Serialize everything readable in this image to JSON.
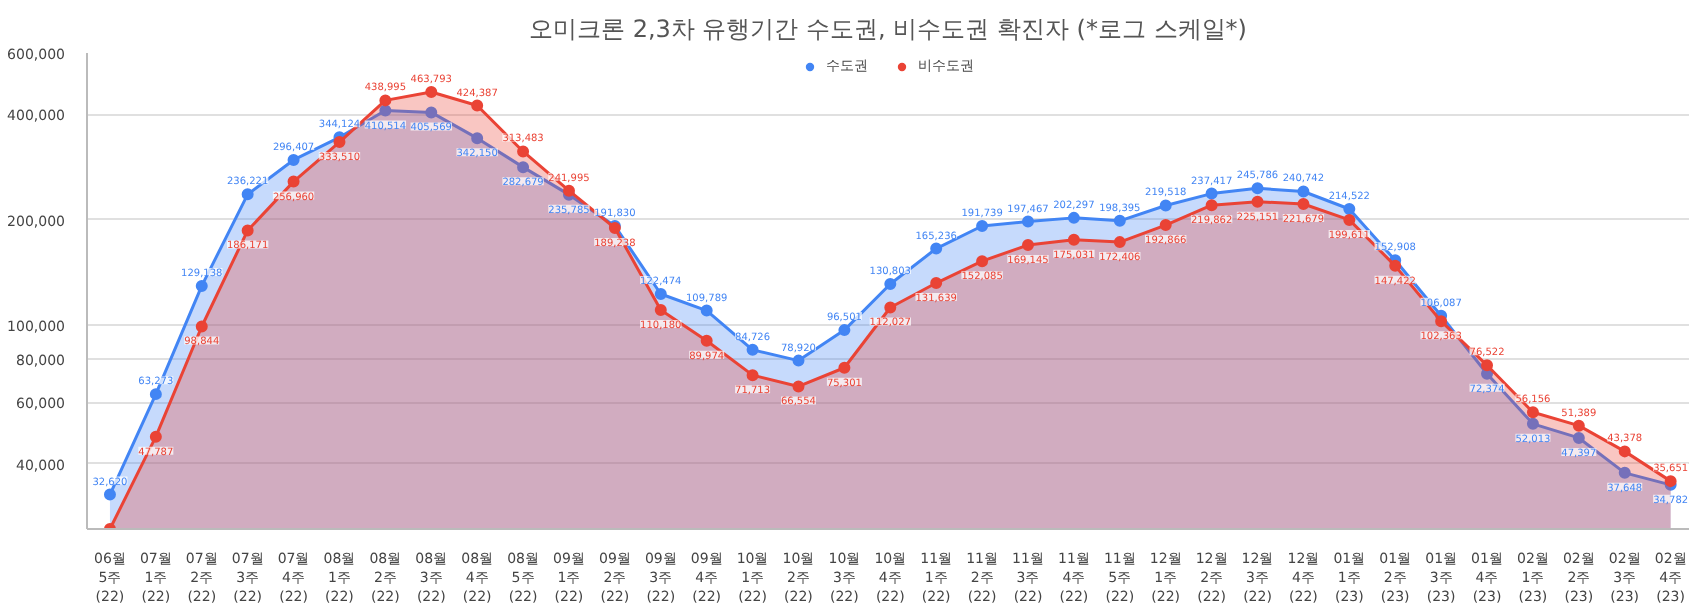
{
  "chart_data": {
    "type": "area",
    "title": "오미크론 2,3차 유행기간 수도권, 비수도권 확진자 (*로그 스케일*)",
    "categories": [
      "06월\n5주\n(22)",
      "07월\n1주\n(22)",
      "07월\n2주\n(22)",
      "07월\n3주\n(22)",
      "07월\n4주\n(22)",
      "08월\n1주\n(22)",
      "08월\n2주\n(22)",
      "08월\n3주\n(22)",
      "08월\n4주\n(22)",
      "08월\n5주\n(22)",
      "09월\n1주\n(22)",
      "09월\n2주\n(22)",
      "09월\n3주\n(22)",
      "09월\n4주\n(22)",
      "10월\n1주\n(22)",
      "10월\n2주\n(22)",
      "10월\n3주\n(22)",
      "10월\n4주\n(22)",
      "11월\n1주\n(22)",
      "11월\n2주\n(22)",
      "11월\n3주\n(22)",
      "11월\n4주\n(22)",
      "11월\n5주\n(22)",
      "12월\n1주\n(22)",
      "12월\n2주\n(22)",
      "12월\n3주\n(22)",
      "12월\n4주\n(22)",
      "01월\n1주\n(23)",
      "01월\n2주\n(23)",
      "01월\n3주\n(23)",
      "01월\n4주\n(23)",
      "02월\n1주\n(23)",
      "02월\n2주\n(23)",
      "02월\n3주\n(23)",
      "02월\n4주\n(23)"
    ],
    "series": [
      {
        "name": "수도권",
        "color": "#4285f4",
        "values": [
          32620,
          63273,
          129138,
          236221,
          296407,
          344124,
          410514,
          405569,
          342150,
          282679,
          235785,
          191830,
          122474,
          109789,
          84726,
          78920,
          96501,
          130803,
          165236,
          191739,
          197467,
          202297,
          198395,
          219518,
          237417,
          245786,
          240742,
          214522,
          152908,
          106087,
          72374,
          52013,
          47397,
          37648,
          34782
        ],
        "value_labels": [
          "32,620",
          "63,273",
          "129,138",
          "236,221",
          "296,407",
          "344,124",
          "410,514",
          "405,569",
          "342,150",
          "282,679",
          "235,785",
          "191,830",
          "122,474",
          "109,789",
          "84,726",
          "78,920",
          "96,501",
          "130,803",
          "165,236",
          "191,739",
          "197,467",
          "202,297",
          "198,395",
          "219,518",
          "237,417",
          "245,786",
          "240,742",
          "214,522",
          "152,908",
          "106,087",
          "72,374",
          "52,013",
          "47,397",
          "37,648",
          "34,782"
        ]
      },
      {
        "name": "비수도권",
        "color": "#ea4335",
        "values": [
          26000,
          47787,
          98844,
          186171,
          256960,
          333510,
          438995,
          463793,
          424387,
          313483,
          241995,
          189238,
          110180,
          89974,
          71713,
          66554,
          75301,
          112027,
          131639,
          152085,
          169145,
          175031,
          172406,
          192866,
          219862,
          225151,
          221679,
          199611,
          147422,
          102363,
          76522,
          56156,
          51389,
          43378,
          35651
        ],
        "value_labels": [
          null,
          "47,787",
          "98,844",
          "186,171",
          "256,960",
          "333,510",
          "438,995",
          "463,793",
          "424,387",
          "313,483",
          "241,995",
          "189,238",
          "110,180",
          "89,974",
          "71,713",
          "66,554",
          "75,301",
          "112,027",
          "131,639",
          "152,085",
          "169,145",
          "175,031",
          "172,406",
          "192,866",
          "219,862",
          "225,151",
          "221,679",
          "199,611",
          "147,422",
          "102,363",
          "76,522",
          "56,156",
          "51,389",
          "43,378",
          "35,651"
        ]
      }
    ],
    "log": "y",
    "ylim": [
      26000,
      600000
    ],
    "yticks": [
      {
        "value": 40000,
        "label": "40,000"
      },
      {
        "value": 60000,
        "label": "60,000"
      },
      {
        "value": 80000,
        "label": "80,000"
      },
      {
        "value": 100000,
        "label": "100,000"
      },
      {
        "value": 200000,
        "label": "200,000"
      },
      {
        "value": 400000,
        "label": "400,000"
      },
      {
        "value": 600000,
        "label": "600,000"
      }
    ],
    "grid": "y",
    "legend": "top",
    "marker": "circle"
  }
}
